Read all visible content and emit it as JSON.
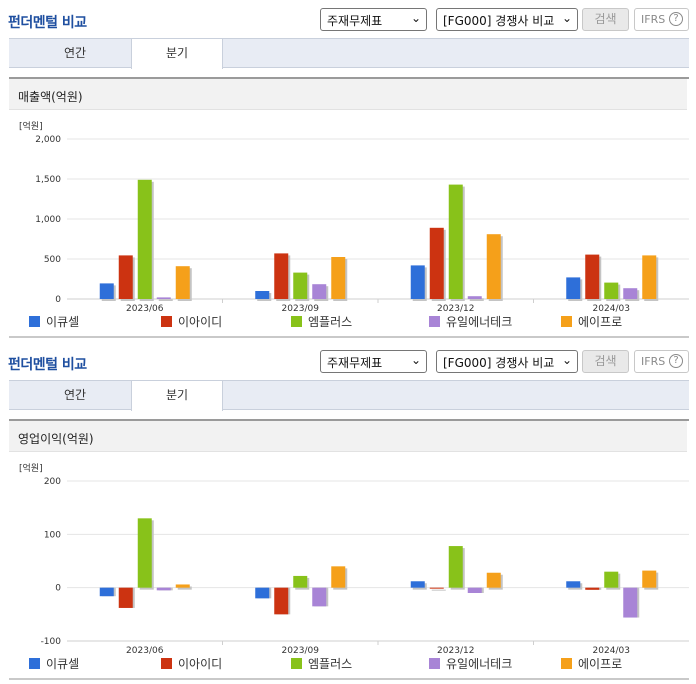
{
  "sections": [
    {
      "title": "펀더멘털 비교",
      "select_statement": "주재무제표",
      "select_peer": "[FG000] 경쟁사 비교",
      "search_label": "검색",
      "ifrs_label": "IFRS",
      "tabs": [
        {
          "label": "연간",
          "active": false
        },
        {
          "label": "분기",
          "active": true
        }
      ],
      "panel_title": "매출액(억원)",
      "chart_data": {
        "type": "bar",
        "unit_label": "[억원]",
        "categories": [
          "2023/06",
          "2023/09",
          "2023/12",
          "2024/03"
        ],
        "ylim": [
          0,
          2000
        ],
        "yticks": [
          "2,000",
          "1,500",
          "1,000",
          "500",
          "0"
        ],
        "ytick_values": [
          2000,
          1500,
          1000,
          500,
          0
        ],
        "grid": true,
        "legend_position": "bottom",
        "series": [
          {
            "name": "이큐셀",
            "color": "#2e6fd9",
            "values": [
              195,
              100,
              420,
              270
            ]
          },
          {
            "name": "이아이디",
            "color": "#cc3311",
            "values": [
              545,
              570,
              890,
              555
            ]
          },
          {
            "name": "엠플러스",
            "color": "#88c21a",
            "values": [
              1490,
              330,
              1430,
              205
            ]
          },
          {
            "name": "유일에너테크",
            "color": "#a884d6",
            "values": [
              20,
              185,
              35,
              135
            ]
          },
          {
            "name": "에이프로",
            "color": "#f5a01a",
            "values": [
              410,
              525,
              810,
              545
            ]
          }
        ]
      }
    },
    {
      "title": "펀더멘털 비교",
      "select_statement": "주재무제표",
      "select_peer": "[FG000] 경쟁사 비교",
      "search_label": "검색",
      "ifrs_label": "IFRS",
      "tabs": [
        {
          "label": "연간",
          "active": false
        },
        {
          "label": "분기",
          "active": true
        }
      ],
      "panel_title": "영업이익(억원)",
      "chart_data": {
        "type": "bar",
        "unit_label": "[억원]",
        "categories": [
          "2023/06",
          "2023/09",
          "2023/12",
          "2024/03"
        ],
        "ylim": [
          -100,
          200
        ],
        "yticks": [
          "200",
          "100",
          "0",
          "-100"
        ],
        "ytick_values": [
          200,
          100,
          0,
          -100
        ],
        "grid": true,
        "legend_position": "bottom",
        "series": [
          {
            "name": "이큐셀",
            "color": "#2e6fd9",
            "values": [
              -16,
              -20,
              12,
              12
            ]
          },
          {
            "name": "이아이디",
            "color": "#cc3311",
            "values": [
              -38,
              -50,
              0,
              -4
            ]
          },
          {
            "name": "엠플러스",
            "color": "#88c21a",
            "values": [
              130,
              22,
              78,
              30
            ]
          },
          {
            "name": "유일에너테크",
            "color": "#a884d6",
            "values": [
              -5,
              -35,
              -10,
              -56
            ]
          },
          {
            "name": "에이프로",
            "color": "#f5a01a",
            "values": [
              6,
              40,
              28,
              32
            ]
          }
        ]
      }
    }
  ]
}
